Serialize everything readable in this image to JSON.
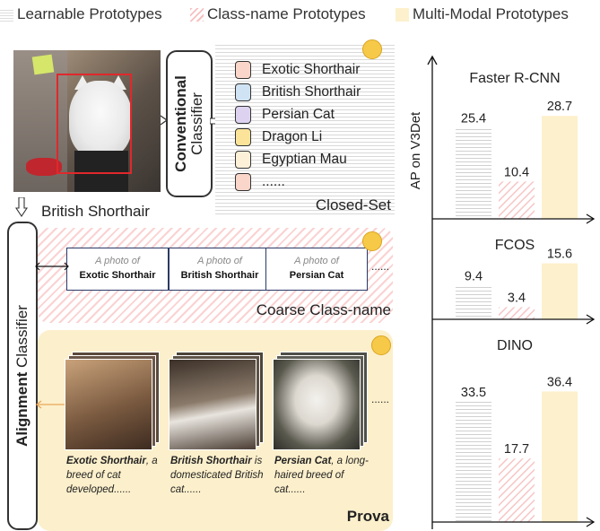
{
  "legend": {
    "items": [
      {
        "label": "Learnable Prototypes",
        "swatch": "learnable"
      },
      {
        "label": "Class-name Prototypes",
        "swatch": "class-name"
      },
      {
        "label": "Multi-Modal Prototypes",
        "swatch": "multi-modal"
      }
    ]
  },
  "conventional": {
    "title_bold": "Conventional",
    "title_rest": "Classifier",
    "classes": [
      "Exotic Shorthair",
      "British Shorthair",
      "Persian Cat",
      "Dragon Li",
      "Egyptian Mau",
      "......"
    ],
    "chip_colors": [
      "#f9d6c9",
      "#cfe3f4",
      "#ddd3f0",
      "#fbe49a",
      "#fdf0d8",
      "#f9d6c9"
    ],
    "panel_label": "Closed-Set"
  },
  "prediction_label": "British Shorthair",
  "alignment": {
    "title_bold": "Alignment",
    "title_rest": " Classifier"
  },
  "coarse": {
    "cards": [
      {
        "prefix": "A photo of",
        "name": "Exotic Shorthair"
      },
      {
        "prefix": "A photo of",
        "name": "British Shorthair"
      },
      {
        "prefix": "A photo of",
        "name": "Persian Cat"
      }
    ],
    "ellipsis": "......",
    "panel_label": "Coarse Class-name"
  },
  "prova": {
    "items": [
      {
        "name": "Exotic Shorthair",
        "rest": ", a breed of cat developed......"
      },
      {
        "name": "British Shorthair",
        "rest": " is domesticated British cat......"
      },
      {
        "name": "Persian Cat",
        "rest": ", a long-haired breed of cat......"
      }
    ],
    "ellipsis": "......",
    "panel_label": "Prova"
  },
  "chart_data": {
    "type": "bar",
    "ylabel": "AP on V3Det",
    "series_order": [
      "Learnable Prototypes",
      "Class-name Prototypes",
      "Multi-Modal Prototypes"
    ],
    "panels": [
      {
        "title": "Faster R-CNN",
        "values": [
          25.4,
          10.4,
          28.7
        ],
        "labels": [
          "25.4",
          "10.4",
          "28.7"
        ]
      },
      {
        "title": "FCOS",
        "values": [
          9.4,
          3.4,
          15.6
        ],
        "labels": [
          "9.4",
          "3.4",
          "15.6"
        ]
      },
      {
        "title": "DINO",
        "values": [
          33.5,
          17.7,
          36.4
        ],
        "labels": [
          "33.5",
          "17.7",
          "36.4"
        ]
      }
    ]
  }
}
